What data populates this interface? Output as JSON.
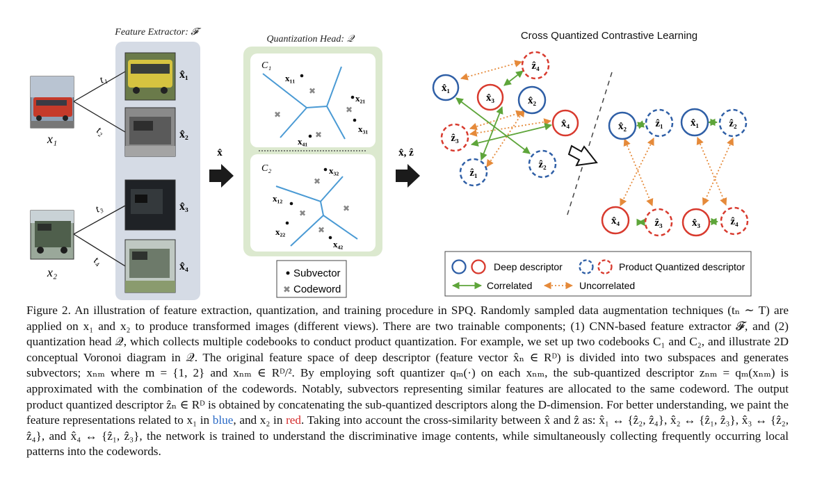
{
  "figure": {
    "extractor_title": "Feature Extractor: 𝓕",
    "quantizer_title": "Quantization Head: 𝒬",
    "contrastive_title": "Cross Quantized Contrastive Learning",
    "inputs": [
      {
        "label": "x₁"
      },
      {
        "label": "x₂"
      }
    ],
    "transforms": [
      "t₁",
      "t₂",
      "t₃",
      "t₄"
    ],
    "views": [
      "x̂₁",
      "x̂₂",
      "x̂₃",
      "x̂₄"
    ],
    "arrow_x_label": "x̂",
    "arrow_xz_label": "x̂, ẑ",
    "codebooks": [
      {
        "label": "C₁",
        "subvectors": [
          "x₁₁",
          "x₂₁",
          "x₃₁",
          "x₄₁"
        ]
      },
      {
        "label": "C₂",
        "subvectors": [
          "x₃₂",
          "x₁₂",
          "x₂₂",
          "x₄₂"
        ]
      }
    ],
    "quant_legend": {
      "subvector": "Subvector",
      "codeword": "Codeword"
    },
    "nodes": {
      "x1": "x̂₁",
      "x2": "x̂₂",
      "x3": "x̂₃",
      "x4": "x̂₄",
      "z1": "ẑ₁",
      "z2": "ẑ₂",
      "z3": "ẑ₃",
      "z4": "ẑ₄"
    },
    "legend": {
      "deep": "Deep descriptor",
      "pq": "Product Quantized descriptor",
      "correlated": "Correlated",
      "uncorrelated": "Uncorrelated"
    },
    "colors": {
      "blue": "#2f5fa6",
      "red": "#d83a2e",
      "green": "#5ea53a",
      "orange": "#e58a3a",
      "panel_gray": "#d5dbe5",
      "panel_green": "#dce9cf",
      "voronoi": "#4a9ad4"
    }
  },
  "caption": {
    "line1": "Figure 2. An illustration of feature extraction, quantization, and training procedure in SPQ. Randomly sampled data augmentation techniques (tₙ ∼ T) are applied on x₁ and x₂ to produce transformed images (different views). There are two trainable components; (1) CNN-based feature extractor 𝓕, and (2) quantization head 𝒬, which collects multiple codebooks to conduct product quantization. For example, we set up two codebooks C₁ and C₂, and illustrate 2D conceptual Voronoi diagram in 𝒬. The original feature space of deep descriptor (feature vector x̂ₙ ∈ Rᴰ) is divided into two subspaces and generates subvectors; xₙₘ where m = {1, 2} and xₙₘ ∈ Rᴰ/². By employing soft quantizer qₘ(·) on each xₙₘ, the sub-quantized descriptor zₙₘ = qₘ(xₙₘ) is approximated with the combination of the codewords. Notably, subvectors representing similar features are allocated to the same codeword. The output product quantized descriptor ẑₙ ∈ Rᴰ is obtained by concatenating the sub-quantized descriptors along the D-dimension. For better understanding, we paint the feature representations related to x₁ in ",
    "blue_word": "blue",
    "middle": ", and x₂ in ",
    "red_word": "red",
    "line_end": ". Taking into account the cross-similarity between x̂ and ẑ as: x̂₁ ↔ {ẑ₂, ẑ₄}, x̂₂ ↔ {ẑ₁, ẑ₃}, x̂₃ ↔ {ẑ₂, ẑ₄}, and x̂₄ ↔ {ẑ₁, ẑ₃}, the network is trained to understand the discriminative image contents, while simultaneously collecting frequently occurring local patterns into the codewords."
  }
}
